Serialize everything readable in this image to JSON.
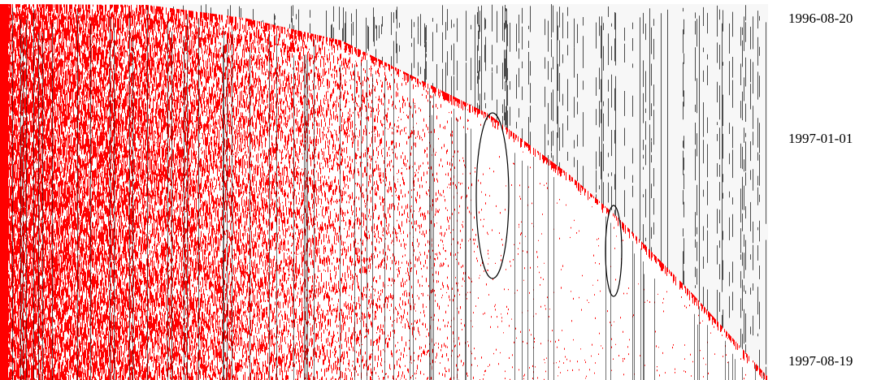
{
  "date_labels": [
    "1996-08-20",
    "1997-01-01",
    "1997-08-19"
  ]
}
